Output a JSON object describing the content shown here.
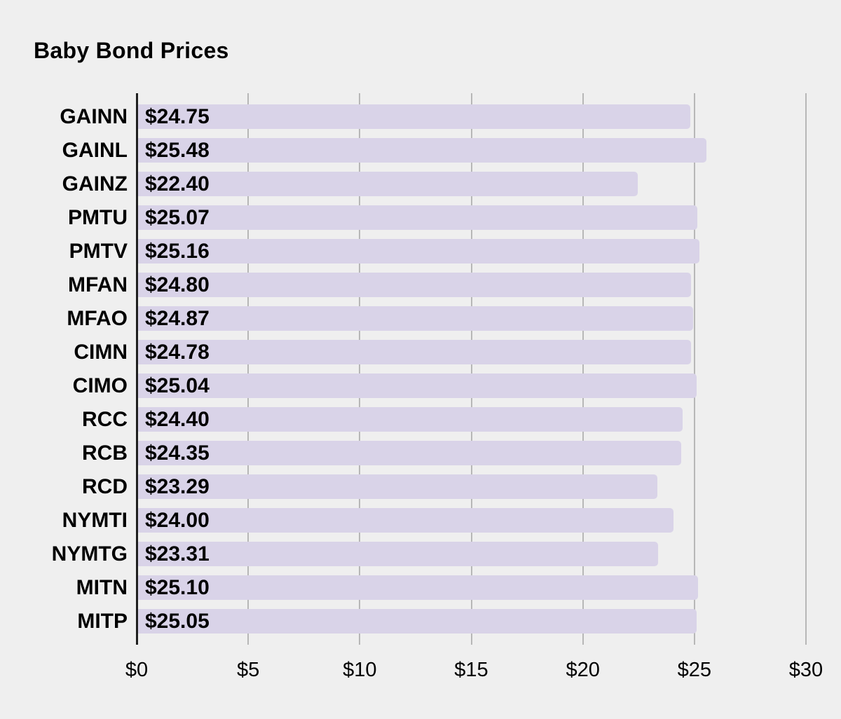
{
  "chart_data": {
    "type": "bar",
    "orientation": "horizontal",
    "title": "Baby Bond Prices",
    "categories": [
      "GAINN",
      "GAINL",
      "GAINZ",
      "PMTU",
      "PMTV",
      "MFAN",
      "MFAO",
      "CIMN",
      "CIMO",
      "RCC",
      "RCB",
      "RCD",
      "NYMTI",
      "NYMTG",
      "MITN",
      "MITP"
    ],
    "values": [
      24.75,
      25.48,
      22.4,
      25.07,
      25.16,
      24.8,
      24.87,
      24.78,
      25.04,
      24.4,
      24.35,
      23.29,
      24.0,
      23.31,
      25.1,
      25.05
    ],
    "value_labels": [
      "$24.75",
      "$25.48",
      "$22.40",
      "$25.07",
      "$25.16",
      "$24.80",
      "$24.87",
      "$24.78",
      "$25.04",
      "$24.40",
      "$24.35",
      "$23.29",
      "$24.00",
      "$23.31",
      "$25.10",
      "$25.05"
    ],
    "xlim": [
      0,
      30
    ],
    "x_ticks": [
      {
        "value": 0,
        "label": "$0"
      },
      {
        "value": 5,
        "label": "$5"
      },
      {
        "value": 10,
        "label": "$10"
      },
      {
        "value": 15,
        "label": "$15"
      },
      {
        "value": 20,
        "label": "$20"
      },
      {
        "value": 25,
        "label": "$25"
      },
      {
        "value": 30,
        "label": "$30"
      }
    ],
    "grid": "vertical-only",
    "legend": "none",
    "value_label_position": "inside-start",
    "colors": {
      "background": "#efefef",
      "bar": "#d9d3e8",
      "gridline": "#b7b7b7",
      "axis": "#1f1f1f",
      "text": "#000000"
    }
  }
}
